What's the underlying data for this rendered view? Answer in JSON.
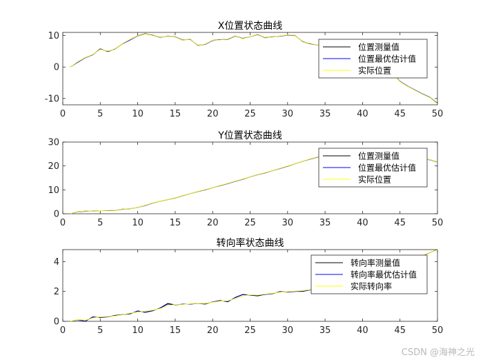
{
  "watermark": "CSDN @海神之光",
  "colors": {
    "measured": "#000000",
    "estimated": "#0000ff",
    "actual": "#ffff00",
    "axis": "#262626"
  },
  "chart_data": [
    {
      "type": "line",
      "title": "X位置状态曲线",
      "xlim": [
        0,
        50
      ],
      "ylim": [
        -12,
        11
      ],
      "xticks": [
        0,
        5,
        10,
        15,
        20,
        25,
        30,
        35,
        40,
        45,
        50
      ],
      "yticks": [
        -10,
        0,
        10
      ],
      "legend_position": "top-right",
      "series": [
        {
          "name": "位置测量值",
          "color": "#000000",
          "x": [
            1,
            2,
            3,
            4,
            5,
            6,
            7,
            8,
            9,
            10,
            11,
            12,
            13,
            14,
            15,
            16,
            17,
            18,
            19,
            20,
            21,
            22,
            23,
            24,
            25,
            26,
            27,
            28,
            29,
            30,
            31,
            32,
            33,
            34,
            35,
            36,
            37,
            38,
            39,
            40,
            41,
            42,
            43,
            44,
            45,
            46,
            47,
            48,
            49,
            50
          ],
          "y": [
            0.0,
            1.6,
            3.0,
            3.9,
            5.8,
            4.9,
            5.7,
            7.5,
            8.7,
            10.0,
            10.6,
            10.2,
            9.3,
            9.9,
            9.6,
            8.5,
            8.9,
            6.8,
            7.2,
            8.5,
            8.7,
            8.8,
            9.9,
            9.1,
            9.6,
            10.4,
            9.3,
            9.6,
            9.8,
            10.2,
            10.1,
            8.0,
            7.4,
            7.0,
            6.1,
            5.2,
            5.5,
            5.4,
            5.0,
            4.4,
            3.4,
            2.2,
            0.3,
            -2.0,
            -4.6,
            -6.1,
            -7.3,
            -8.6,
            -9.7,
            -11.6
          ]
        },
        {
          "name": "位置最优估计值",
          "color": "#0000ff",
          "x": [
            1,
            2,
            3,
            4,
            5,
            6,
            7,
            8,
            9,
            10,
            11,
            12,
            13,
            14,
            15,
            16,
            17,
            18,
            19,
            20,
            21,
            22,
            23,
            24,
            25,
            26,
            27,
            28,
            29,
            30,
            31,
            32,
            33,
            34,
            35,
            36,
            37,
            38,
            39,
            40,
            41,
            42,
            43,
            44,
            45,
            46,
            47,
            48,
            49,
            50
          ],
          "y": [
            0.0,
            1.5,
            2.9,
            3.9,
            5.7,
            5.0,
            5.7,
            7.4,
            8.6,
            9.9,
            10.5,
            10.2,
            9.4,
            9.8,
            9.6,
            8.6,
            8.8,
            6.9,
            7.2,
            8.4,
            8.7,
            8.8,
            9.8,
            9.1,
            9.6,
            10.3,
            9.4,
            9.6,
            9.8,
            10.1,
            10.0,
            8.1,
            7.4,
            7.0,
            6.1,
            5.3,
            5.4,
            5.4,
            5.0,
            4.4,
            3.4,
            2.2,
            0.4,
            -1.9,
            -4.5,
            -6.0,
            -7.3,
            -8.5,
            -9.6,
            -11.5
          ]
        },
        {
          "name": "实际位置",
          "color": "#ffff00",
          "x": [
            1,
            2,
            3,
            4,
            5,
            6,
            7,
            8,
            9,
            10,
            11,
            12,
            13,
            14,
            15,
            16,
            17,
            18,
            19,
            20,
            21,
            22,
            23,
            24,
            25,
            26,
            27,
            28,
            29,
            30,
            31,
            32,
            33,
            34,
            35,
            36,
            37,
            38,
            39,
            40,
            41,
            42,
            43,
            44,
            45,
            46,
            47,
            48,
            49,
            50
          ],
          "y": [
            0.0,
            1.7,
            3.0,
            4.0,
            5.6,
            5.1,
            5.6,
            7.5,
            8.8,
            10.0,
            10.5,
            10.3,
            9.3,
            9.9,
            9.5,
            8.5,
            8.9,
            6.8,
            7.3,
            8.5,
            8.6,
            8.9,
            9.9,
            9.0,
            9.6,
            10.4,
            9.4,
            9.5,
            9.9,
            10.2,
            10.1,
            8.0,
            7.5,
            7.0,
            6.0,
            5.2,
            5.5,
            5.3,
            5.1,
            4.3,
            3.5,
            2.1,
            0.3,
            -2.1,
            -4.6,
            -6.1,
            -7.4,
            -8.6,
            -9.7,
            -11.7
          ]
        }
      ]
    },
    {
      "type": "line",
      "title": "Y位置状态曲线",
      "xlim": [
        0,
        50
      ],
      "ylim": [
        0,
        30
      ],
      "xticks": [
        0,
        5,
        10,
        15,
        20,
        25,
        30,
        35,
        40,
        45,
        50
      ],
      "yticks": [
        0,
        10,
        20,
        30
      ],
      "legend_position": "top-right",
      "series": [
        {
          "name": "位置测量值",
          "color": "#000000",
          "x": [
            1,
            2,
            3,
            4,
            5,
            6,
            7,
            8,
            9,
            10,
            11,
            12,
            13,
            14,
            15,
            16,
            17,
            18,
            19,
            20,
            21,
            22,
            23,
            24,
            25,
            26,
            27,
            28,
            29,
            30,
            31,
            32,
            33,
            34,
            35,
            36,
            37,
            38,
            39,
            40,
            41,
            42,
            43,
            44,
            45,
            46,
            47,
            48,
            49,
            50
          ],
          "y": [
            0.0,
            0.9,
            1.1,
            1.2,
            1.3,
            1.3,
            1.4,
            2.0,
            2.1,
            2.6,
            3.5,
            4.5,
            5.2,
            5.9,
            6.6,
            7.6,
            8.4,
            9.3,
            10.0,
            10.9,
            11.8,
            12.6,
            13.6,
            14.4,
            15.4,
            16.4,
            17.1,
            18.0,
            19.0,
            19.9,
            20.9,
            21.9,
            22.9,
            23.7,
            24.6,
            25.3,
            25.9,
            26.4,
            26.8,
            27.0,
            27.1,
            27.0,
            26.6,
            26.0,
            25.3,
            24.6,
            23.9,
            23.2,
            22.6,
            21.7
          ]
        },
        {
          "name": "位置最优估计值",
          "color": "#0000ff",
          "x": [
            1,
            2,
            3,
            4,
            5,
            6,
            7,
            8,
            9,
            10,
            11,
            12,
            13,
            14,
            15,
            16,
            17,
            18,
            19,
            20,
            21,
            22,
            23,
            24,
            25,
            26,
            27,
            28,
            29,
            30,
            31,
            32,
            33,
            34,
            35,
            36,
            37,
            38,
            39,
            40,
            41,
            42,
            43,
            44,
            45,
            46,
            47,
            48,
            49,
            50
          ],
          "y": [
            0.0,
            0.8,
            1.0,
            1.2,
            1.3,
            1.3,
            1.4,
            1.9,
            2.1,
            2.6,
            3.4,
            4.4,
            5.2,
            5.9,
            6.6,
            7.5,
            8.4,
            9.2,
            10.0,
            10.9,
            11.7,
            12.6,
            13.5,
            14.4,
            15.4,
            16.3,
            17.1,
            18.0,
            18.9,
            19.9,
            20.9,
            21.9,
            22.8,
            23.7,
            24.5,
            25.3,
            25.9,
            26.3,
            26.8,
            27.0,
            27.1,
            26.9,
            26.6,
            26.0,
            25.3,
            24.6,
            23.9,
            23.2,
            22.5,
            21.7
          ]
        },
        {
          "name": "实际位置",
          "color": "#ffff00",
          "x": [
            1,
            2,
            3,
            4,
            5,
            6,
            7,
            8,
            9,
            10,
            11,
            12,
            13,
            14,
            15,
            16,
            17,
            18,
            19,
            20,
            21,
            22,
            23,
            24,
            25,
            26,
            27,
            28,
            29,
            30,
            31,
            32,
            33,
            34,
            35,
            36,
            37,
            38,
            39,
            40,
            41,
            42,
            43,
            44,
            45,
            46,
            47,
            48,
            49,
            50
          ],
          "y": [
            0.0,
            0.9,
            1.1,
            1.2,
            1.3,
            1.4,
            1.4,
            2.0,
            2.1,
            2.6,
            3.5,
            4.5,
            5.2,
            5.9,
            6.7,
            7.6,
            8.4,
            9.3,
            10.1,
            10.9,
            11.8,
            12.7,
            13.6,
            14.5,
            15.4,
            16.4,
            17.2,
            18.0,
            19.0,
            20.0,
            20.9,
            21.9,
            22.9,
            23.8,
            24.6,
            25.4,
            25.9,
            26.4,
            26.9,
            27.1,
            27.1,
            27.0,
            26.6,
            26.1,
            25.4,
            24.6,
            23.9,
            23.2,
            22.6,
            21.8
          ]
        }
      ]
    },
    {
      "type": "line",
      "title": "转向率状态曲线",
      "xlim": [
        0,
        50
      ],
      "ylim": [
        0,
        4.8
      ],
      "xticks": [
        0,
        5,
        10,
        15,
        20,
        25,
        30,
        35,
        40,
        45,
        50
      ],
      "yticks": [
        0,
        2,
        4
      ],
      "legend_position": "top-right",
      "series": [
        {
          "name": "转向率测量值",
          "color": "#000000",
          "x": [
            1,
            2,
            3,
            4,
            5,
            6,
            7,
            8,
            9,
            10,
            11,
            12,
            13,
            14,
            15,
            16,
            17,
            18,
            19,
            20,
            21,
            22,
            23,
            24,
            25,
            26,
            27,
            28,
            29,
            30,
            31,
            32,
            33,
            34,
            35,
            36,
            37,
            38,
            39,
            40,
            41,
            42,
            43,
            44,
            45,
            46,
            47,
            48,
            49,
            50
          ],
          "y": [
            0.0,
            0.1,
            0.0,
            0.3,
            0.25,
            0.3,
            0.4,
            0.45,
            0.5,
            0.7,
            0.6,
            0.7,
            0.9,
            1.2,
            1.1,
            1.15,
            1.15,
            1.2,
            1.15,
            1.3,
            1.4,
            1.3,
            1.6,
            1.8,
            1.75,
            1.7,
            1.8,
            1.85,
            2.0,
            1.95,
            2.0,
            2.0,
            2.1,
            2.3,
            2.5,
            2.6,
            2.7,
            2.8,
            2.9,
            3.0,
            3.2,
            3.3,
            3.5,
            3.7,
            3.9,
            4.1,
            4.3,
            4.4,
            4.6,
            4.8
          ]
        },
        {
          "name": "转向率最优估计值",
          "color": "#0000ff",
          "x": [
            1,
            2,
            3,
            4,
            5,
            6,
            7,
            8,
            9,
            10,
            11,
            12,
            13,
            14,
            15,
            16,
            17,
            18,
            19,
            20,
            21,
            22,
            23,
            24,
            25,
            26,
            27,
            28,
            29,
            30,
            31,
            32,
            33,
            34,
            35,
            36,
            37,
            38,
            39,
            40,
            41,
            42,
            43,
            44,
            45,
            46,
            47,
            48,
            49,
            50
          ],
          "y": [
            0.0,
            0.1,
            0.02,
            0.28,
            0.27,
            0.3,
            0.38,
            0.45,
            0.52,
            0.68,
            0.62,
            0.72,
            0.88,
            1.15,
            1.1,
            1.15,
            1.15,
            1.2,
            1.17,
            1.3,
            1.38,
            1.32,
            1.58,
            1.78,
            1.75,
            1.72,
            1.8,
            1.85,
            1.98,
            1.96,
            2.0,
            2.02,
            2.1,
            2.3,
            2.5,
            2.6,
            2.7,
            2.8,
            2.9,
            3.0,
            3.2,
            3.3,
            3.5,
            3.7,
            3.9,
            4.1,
            4.3,
            4.4,
            4.6,
            4.8
          ]
        },
        {
          "name": "实际转向率",
          "color": "#ffff00",
          "x": [
            1,
            2,
            3,
            4,
            5,
            6,
            7,
            8,
            9,
            10,
            11,
            12,
            13,
            14,
            15,
            16,
            17,
            18,
            19,
            20,
            21,
            22,
            23,
            24,
            25,
            26,
            27,
            28,
            29,
            30,
            31,
            32,
            33,
            34,
            35,
            36,
            37,
            38,
            39,
            40,
            41,
            42,
            43,
            44,
            45,
            46,
            47,
            48,
            49,
            50
          ],
          "y": [
            0.0,
            0.12,
            0.08,
            0.22,
            0.3,
            0.32,
            0.36,
            0.44,
            0.55,
            0.62,
            0.68,
            0.75,
            0.85,
            1.05,
            1.12,
            1.12,
            1.18,
            1.2,
            1.2,
            1.28,
            1.35,
            1.38,
            1.52,
            1.7,
            1.78,
            1.76,
            1.82,
            1.88,
            1.95,
            1.98,
            2.02,
            2.05,
            2.12,
            2.3,
            2.48,
            2.6,
            2.7,
            2.8,
            2.9,
            3.02,
            3.2,
            3.32,
            3.5,
            3.7,
            3.9,
            4.1,
            4.28,
            4.42,
            4.6,
            4.78
          ]
        }
      ]
    }
  ]
}
